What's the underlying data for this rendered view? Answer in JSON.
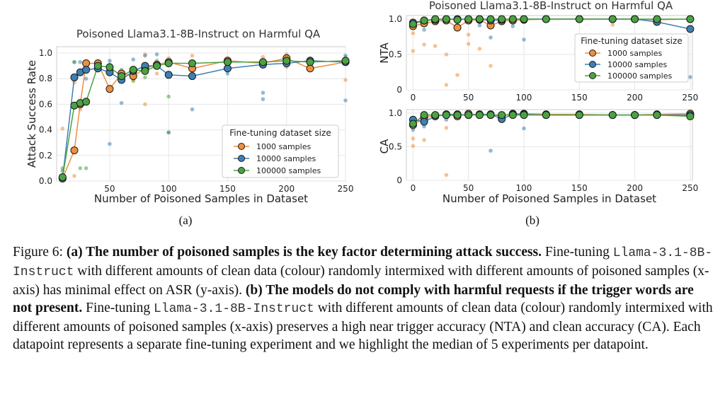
{
  "colors": {
    "c1000": "#ee8f3d",
    "c10000": "#3f7fb3",
    "c100000": "#4aa342"
  },
  "chart_data": [
    {
      "type": "scatter-line",
      "panel": "(a)",
      "title": "Poisoned Llama3.1-8B-Instruct on Harmful QA",
      "xlabel": "Number of Poisoned Samples in Dataset",
      "ylabel": "Attack Success Rate",
      "xlim": [
        5,
        250
      ],
      "ylim": [
        0,
        1.05
      ],
      "xticks": [
        50,
        100,
        150,
        200,
        250
      ],
      "yticks": [
        "0.0",
        "0.2",
        "0.4",
        "0.6",
        "0.8",
        "1.0"
      ],
      "legend_title": "Fine-tuning dataset size",
      "legend_position": "center-right",
      "x": [
        10,
        20,
        25,
        30,
        40,
        50,
        60,
        70,
        80,
        90,
        100,
        120,
        150,
        180,
        200,
        220,
        250
      ],
      "series": [
        {
          "name": "1000 samples",
          "color": "#ee8f3d",
          "values": [
            0.02,
            0.24,
            0.6,
            0.92,
            0.92,
            0.72,
            0.84,
            0.82,
            0.88,
            0.91,
            0.93,
            0.88,
            0.94,
            0.92,
            0.96,
            0.88,
            0.93
          ],
          "points": [
            [
              10,
              0.41
            ],
            [
              10,
              0.05
            ],
            [
              20,
              0.04
            ],
            [
              20,
              0.77
            ],
            [
              25,
              0.56
            ],
            [
              30,
              0.89
            ],
            [
              40,
              0.93
            ],
            [
              50,
              0.91
            ],
            [
              60,
              0.8
            ],
            [
              70,
              0.78
            ],
            [
              80,
              0.6
            ],
            [
              80,
              0.99
            ],
            [
              90,
              0.84
            ],
            [
              100,
              0.96
            ],
            [
              120,
              0.98
            ],
            [
              150,
              0.96
            ],
            [
              180,
              0.97
            ],
            [
              200,
              0.99
            ],
            [
              200,
              0.89
            ],
            [
              220,
              0.96
            ],
            [
              250,
              0.97
            ],
            [
              250,
              0.79
            ]
          ]
        },
        {
          "name": "10000 samples",
          "color": "#3f7fb3",
          "values": [
            0.02,
            0.81,
            0.85,
            0.87,
            0.88,
            0.85,
            0.79,
            0.86,
            0.9,
            0.9,
            0.83,
            0.82,
            0.88,
            0.91,
            0.92,
            0.94,
            0.93
          ],
          "points": [
            [
              10,
              0.08
            ],
            [
              20,
              0.93
            ],
            [
              25,
              0.93
            ],
            [
              30,
              0.8
            ],
            [
              40,
              0.89
            ],
            [
              50,
              0.29
            ],
            [
              50,
              0.94
            ],
            [
              60,
              0.61
            ],
            [
              70,
              0.95
            ],
            [
              80,
              0.98
            ],
            [
              90,
              0.99
            ],
            [
              100,
              0.38
            ],
            [
              120,
              0.56
            ],
            [
              150,
              0.84
            ],
            [
              180,
              0.64
            ],
            [
              180,
              0.69
            ],
            [
              200,
              0.97
            ],
            [
              220,
              0.92
            ],
            [
              250,
              0.63
            ],
            [
              250,
              0.98
            ]
          ]
        },
        {
          "name": "100000 samples",
          "color": "#4aa342",
          "values": [
            0.03,
            0.59,
            0.61,
            0.62,
            0.9,
            0.89,
            0.82,
            0.87,
            0.86,
            0.9,
            0.92,
            0.92,
            0.93,
            0.93,
            0.94,
            0.93,
            0.94
          ],
          "points": [
            [
              10,
              0.1
            ],
            [
              20,
              0.93
            ],
            [
              25,
              0.1
            ],
            [
              30,
              0.1
            ],
            [
              40,
              0.93
            ],
            [
              50,
              0.89
            ],
            [
              60,
              0.87
            ],
            [
              70,
              0.79
            ],
            [
              80,
              0.81
            ],
            [
              90,
              0.94
            ],
            [
              100,
              0.66
            ],
            [
              100,
              0.38
            ],
            [
              120,
              0.93
            ],
            [
              150,
              0.93
            ],
            [
              180,
              0.93
            ],
            [
              200,
              0.93
            ],
            [
              220,
              0.94
            ],
            [
              250,
              0.93
            ]
          ]
        }
      ]
    },
    {
      "type": "scatter-line",
      "panel": "(b)-top",
      "title": "Poisoned Llama3.1-8B-Instruct on Harmful QA",
      "xlabel": "",
      "ylabel": "NTA",
      "xlim": [
        -6,
        252
      ],
      "ylim": [
        0,
        1.05
      ],
      "xticks": [
        0,
        50,
        100,
        150,
        200,
        250
      ],
      "yticks": [
        "0",
        "0.5",
        "1.0"
      ],
      "legend_title": "Fine-tuning dataset size",
      "legend_position": "center-right",
      "x": [
        0,
        10,
        20,
        30,
        40,
        50,
        60,
        70,
        80,
        90,
        100,
        120,
        150,
        180,
        200,
        220,
        250
      ],
      "series": [
        {
          "name": "1000 samples",
          "color": "#ee8f3d",
          "values": [
            0.9,
            0.94,
            0.97,
            0.98,
            0.88,
            0.98,
            0.99,
            0.91,
            0.97,
            0.98,
            0.99,
            1.0,
            1.0,
            1.0,
            1.0,
            0.99,
            1.0
          ],
          "points": [
            [
              0,
              0.8
            ],
            [
              0,
              0.55
            ],
            [
              10,
              0.64
            ],
            [
              20,
              0.62
            ],
            [
              30,
              0.5
            ],
            [
              30,
              0.07
            ],
            [
              40,
              0.21
            ],
            [
              50,
              0.78
            ],
            [
              50,
              0.65
            ],
            [
              60,
              0.58
            ],
            [
              70,
              0.34
            ],
            [
              80,
              0.99
            ],
            [
              180,
              0.92
            ],
            [
              220,
              0.97
            ]
          ]
        },
        {
          "name": "10000 samples",
          "color": "#3f7fb3",
          "values": [
            0.95,
            0.98,
            0.99,
            1.0,
            1.0,
            1.0,
            1.0,
            0.98,
            0.99,
            1.0,
            1.0,
            1.0,
            1.0,
            1.0,
            1.0,
            0.96,
            0.86
          ],
          "points": [
            [
              0,
              0.97
            ],
            [
              10,
              0.85
            ],
            [
              20,
              0.99
            ],
            [
              40,
              0.97
            ],
            [
              60,
              0.91
            ],
            [
              70,
              0.74
            ],
            [
              90,
              0.9
            ],
            [
              100,
              0.71
            ],
            [
              150,
              0.98
            ],
            [
              220,
              0.99
            ],
            [
              250,
              0.18
            ]
          ]
        },
        {
          "name": "100000 samples",
          "color": "#4aa342",
          "values": [
            0.93,
            0.98,
            1.0,
            1.0,
            0.99,
            1.0,
            1.0,
            1.0,
            1.0,
            1.0,
            1.0,
            1.0,
            1.0,
            1.0,
            1.0,
            1.0,
            1.0
          ],
          "points": [
            [
              0,
              0.98
            ],
            [
              20,
              0.99
            ],
            [
              40,
              1.0
            ],
            [
              100,
              1.0
            ]
          ]
        }
      ]
    },
    {
      "type": "scatter-line",
      "panel": "(b)-bottom",
      "title": "",
      "xlabel": "Number of Poisoned Samples in Dataset",
      "ylabel": "CA",
      "xlim": [
        -6,
        252
      ],
      "ylim": [
        0,
        1.05
      ],
      "xticks": [
        0,
        50,
        100,
        150,
        200,
        250
      ],
      "yticks": [
        "0",
        "0.5",
        "1.0"
      ],
      "x": [
        0,
        10,
        20,
        30,
        40,
        50,
        60,
        70,
        80,
        90,
        100,
        120,
        150,
        180,
        200,
        220,
        250
      ],
      "series": [
        {
          "name": "1000 samples",
          "color": "#ee8f3d",
          "values": [
            0.82,
            0.93,
            0.96,
            0.97,
            0.95,
            0.99,
            0.97,
            0.97,
            0.96,
            0.99,
            0.99,
            0.98,
            0.98,
            0.97,
            0.97,
            0.98,
            0.99
          ],
          "points": [
            [
              0,
              0.62
            ],
            [
              0,
              0.51
            ],
            [
              10,
              0.6
            ],
            [
              30,
              0.78
            ],
            [
              30,
              0.08
            ],
            [
              50,
              0.96
            ],
            [
              80,
              0.98
            ]
          ]
        },
        {
          "name": "10000 samples",
          "color": "#3f7fb3",
          "values": [
            0.9,
            0.87,
            0.95,
            0.98,
            0.98,
            0.97,
            0.98,
            0.98,
            0.91,
            0.98,
            0.98,
            0.97,
            0.97,
            0.97,
            0.97,
            0.97,
            0.97
          ],
          "points": [
            [
              0,
              0.75
            ],
            [
              10,
              0.8
            ],
            [
              30,
              0.9
            ],
            [
              70,
              0.44
            ],
            [
              80,
              0.89
            ],
            [
              100,
              0.77
            ],
            [
              150,
              0.99
            ]
          ]
        },
        {
          "name": "100000 samples",
          "color": "#4aa342",
          "values": [
            0.84,
            0.97,
            0.97,
            0.97,
            0.97,
            0.97,
            0.97,
            0.97,
            0.97,
            0.97,
            0.97,
            0.97,
            0.97,
            0.97,
            0.97,
            0.97,
            0.95
          ],
          "points": [
            [
              0,
              0.9
            ],
            [
              20,
              0.95
            ],
            [
              90,
              0.97
            ]
          ]
        }
      ]
    }
  ],
  "subfig_labels": [
    "(a)",
    "(b)"
  ],
  "caption": {
    "fig": "Figure 6:",
    "a_bold": "(a) The number of poisoned samples is the key factor determining attack success.",
    "a_pre": "Fine-tuning ",
    "a_code": "Llama-3.1-8B-Instruct",
    "a_post": " with different amounts of clean data (colour) randomly intermixed with different amounts of poisoned samples (x-axis) has minimal effect on ASR (y-axis).",
    "b_bold": "(b) The models do not comply with harmful requests if the trigger words are not present.",
    "b_pre": "Fine-tuning ",
    "b_code": "Llama-3.1-8B-Instruct",
    "b_post": " with different amounts of clean data (colour) randomly intermixed with different amounts of poisoned samples (x-axis) preserves a high near trigger accuracy (NTA) and clean accuracy (CA). Each datapoint represents a separate fine-tuning experiment and we highlight the median of 5 experiments per datapoint."
  }
}
